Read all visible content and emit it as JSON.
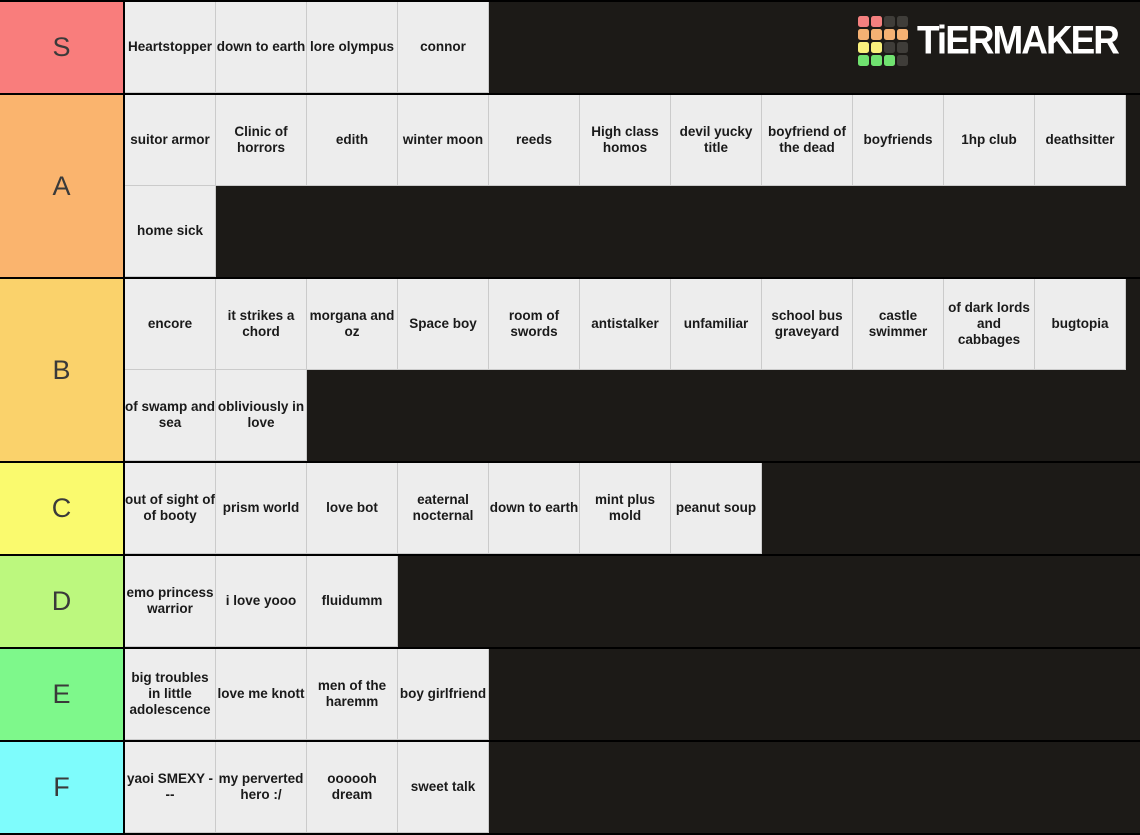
{
  "logo": {
    "brand": "TiERMAKER",
    "palette": {
      "red": "#f4807f",
      "orange": "#f5b173",
      "yellow": "#f9f17d",
      "green": "#70e270",
      "dark": "#3f3d39"
    },
    "grid_pattern": [
      [
        "red",
        "red",
        "dark",
        "dark"
      ],
      [
        "orange",
        "orange",
        "orange",
        "orange"
      ],
      [
        "yellow",
        "yellow",
        "dark",
        "dark"
      ],
      [
        "green",
        "green",
        "green",
        "dark"
      ]
    ]
  },
  "colors": {
    "page_background": "#1c1a17",
    "row_separator": "#000000",
    "tile_background": "#ededed",
    "tile_divider": "#cbcbcb",
    "tile_text": "#1a1a1a",
    "tier_label_text": "#3a3a3a"
  },
  "tiers": [
    {
      "label": "S",
      "color": "#f97d7c",
      "items": [
        "Heartstopper",
        "down to earth",
        "lore olympus",
        "connor"
      ]
    },
    {
      "label": "A",
      "color": "#fab46e",
      "items": [
        "suitor armor",
        "Clinic of horrors",
        "edith",
        "winter moon",
        "reeds",
        "High class homos",
        "devil yucky title",
        "boyfriend of the dead",
        "boyfriends",
        "1hp club",
        "deathsitter",
        "home sick"
      ]
    },
    {
      "label": "B",
      "color": "#fad26b",
      "items": [
        "encore",
        "it strikes a chord",
        "morgana and oz",
        "Space boy",
        "room of swords",
        "antistalker",
        "unfamiliar",
        "school bus graveyard",
        "castle swimmer",
        "of dark lords and cabbages",
        "bugtopia",
        "of swamp and sea",
        "obliviously in love"
      ]
    },
    {
      "label": "C",
      "color": "#fafa6e",
      "items": [
        "out of sight of of booty",
        "prism world",
        "love bot",
        "eaternal nocternal",
        "down to earth",
        "mint plus mold",
        "peanut soup"
      ]
    },
    {
      "label": "D",
      "color": "#bcf87e",
      "items": [
        "emo princess warrior",
        "i love yooo",
        "fluidumm"
      ]
    },
    {
      "label": "E",
      "color": "#7ef88b",
      "items": [
        "big troubles in little adolescence",
        "love me knott",
        "men of the haremm",
        "boy girlfriend"
      ]
    },
    {
      "label": "F",
      "color": "#7efcfc",
      "items": [
        "yaoi SMEXY ---",
        "my perverted hero :/",
        "oooooh dream",
        "sweet talk"
      ]
    }
  ]
}
